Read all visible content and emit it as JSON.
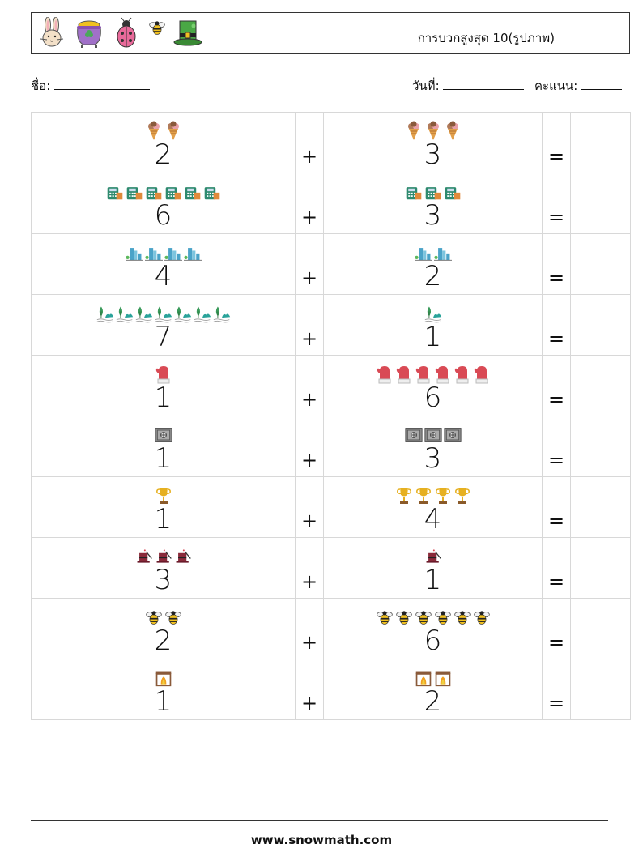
{
  "header": {
    "title": "การบวกสูงสุด 10(รูปภาพ)",
    "icons": [
      "rabbit-icon",
      "pot-of-gold-icon",
      "ladybug-icon",
      "bee-icon",
      "leprechaun-hat-icon"
    ]
  },
  "fields": {
    "name_label": "ชื่อ:",
    "date_label": "วันที่:",
    "score_label": "คะแนน:"
  },
  "problems": [
    {
      "icon": "ice-cream-icon",
      "a": 2,
      "op": "+",
      "b": 3,
      "eq": "="
    },
    {
      "icon": "calculator-icon",
      "a": 6,
      "op": "+",
      "b": 3,
      "eq": "="
    },
    {
      "icon": "city-buildings-icon",
      "a": 4,
      "op": "+",
      "b": 2,
      "eq": "="
    },
    {
      "icon": "tree-bush-icon",
      "a": 7,
      "op": "+",
      "b": 1,
      "eq": "="
    },
    {
      "icon": "mitten-icon",
      "a": 1,
      "op": "+",
      "b": 6,
      "eq": "="
    },
    {
      "icon": "safe-icon",
      "a": 1,
      "op": "+",
      "b": 3,
      "eq": "="
    },
    {
      "icon": "trophy-icon",
      "a": 1,
      "op": "+",
      "b": 4,
      "eq": "="
    },
    {
      "icon": "magic-hat-icon",
      "a": 3,
      "op": "+",
      "b": 1,
      "eq": "="
    },
    {
      "icon": "bee-icon",
      "a": 2,
      "op": "+",
      "b": 6,
      "eq": "="
    },
    {
      "icon": "fireplace-icon",
      "a": 1,
      "op": "+",
      "b": 2,
      "eq": "="
    }
  ],
  "footer": {
    "site": "www.snowmath.com"
  }
}
